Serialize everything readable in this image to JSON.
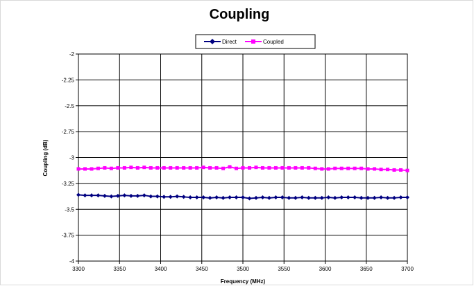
{
  "chart_data": {
    "type": "line",
    "title": "Coupling",
    "xlabel": "Frequency (MHz)",
    "ylabel": "Coupling (dB)",
    "xlim": [
      3300,
      3700
    ],
    "ylim": [
      -4,
      -2
    ],
    "x_ticks": [
      "3300",
      "3350",
      "3400",
      "3450",
      "3500",
      "3550",
      "3600",
      "3650",
      "3700"
    ],
    "y_ticks": [
      "-2",
      "-2.25",
      "-2.5",
      "-2.75",
      "-3",
      "-3.25",
      "-3.5",
      "-3.75",
      "-4"
    ],
    "grid": true,
    "legend_position": "top-center",
    "x": [
      3300,
      3308,
      3316,
      3324,
      3332,
      3340,
      3348,
      3356,
      3364,
      3372,
      3380,
      3388,
      3396,
      3404,
      3412,
      3420,
      3428,
      3436,
      3444,
      3452,
      3460,
      3468,
      3476,
      3484,
      3492,
      3500,
      3508,
      3516,
      3524,
      3532,
      3540,
      3548,
      3556,
      3564,
      3572,
      3580,
      3588,
      3596,
      3604,
      3612,
      3620,
      3628,
      3636,
      3644,
      3652,
      3660,
      3668,
      3676,
      3684,
      3692,
      3700
    ],
    "series": [
      {
        "name": "Direct",
        "color": "#000080",
        "marker": "diamond",
        "values": [
          -3.36,
          -3.365,
          -3.365,
          -3.365,
          -3.37,
          -3.375,
          -3.37,
          -3.365,
          -3.37,
          -3.37,
          -3.365,
          -3.375,
          -3.375,
          -3.38,
          -3.38,
          -3.375,
          -3.38,
          -3.385,
          -3.385,
          -3.385,
          -3.39,
          -3.385,
          -3.39,
          -3.385,
          -3.385,
          -3.385,
          -3.395,
          -3.39,
          -3.385,
          -3.39,
          -3.385,
          -3.385,
          -3.39,
          -3.39,
          -3.385,
          -3.39,
          -3.39,
          -3.39,
          -3.385,
          -3.39,
          -3.385,
          -3.385,
          -3.385,
          -3.39,
          -3.39,
          -3.39,
          -3.385,
          -3.39,
          -3.39,
          -3.385,
          -3.385
        ]
      },
      {
        "name": "Coupled",
        "color": "#ff00ff",
        "marker": "square",
        "values": [
          -3.11,
          -3.11,
          -3.11,
          -3.105,
          -3.1,
          -3.105,
          -3.1,
          -3.1,
          -3.095,
          -3.1,
          -3.095,
          -3.1,
          -3.1,
          -3.1,
          -3.1,
          -3.1,
          -3.1,
          -3.1,
          -3.1,
          -3.095,
          -3.1,
          -3.1,
          -3.105,
          -3.09,
          -3.105,
          -3.1,
          -3.1,
          -3.095,
          -3.1,
          -3.1,
          -3.1,
          -3.1,
          -3.1,
          -3.1,
          -3.1,
          -3.1,
          -3.105,
          -3.11,
          -3.11,
          -3.105,
          -3.105,
          -3.105,
          -3.105,
          -3.105,
          -3.11,
          -3.11,
          -3.115,
          -3.115,
          -3.12,
          -3.12,
          -3.125
        ]
      }
    ]
  }
}
